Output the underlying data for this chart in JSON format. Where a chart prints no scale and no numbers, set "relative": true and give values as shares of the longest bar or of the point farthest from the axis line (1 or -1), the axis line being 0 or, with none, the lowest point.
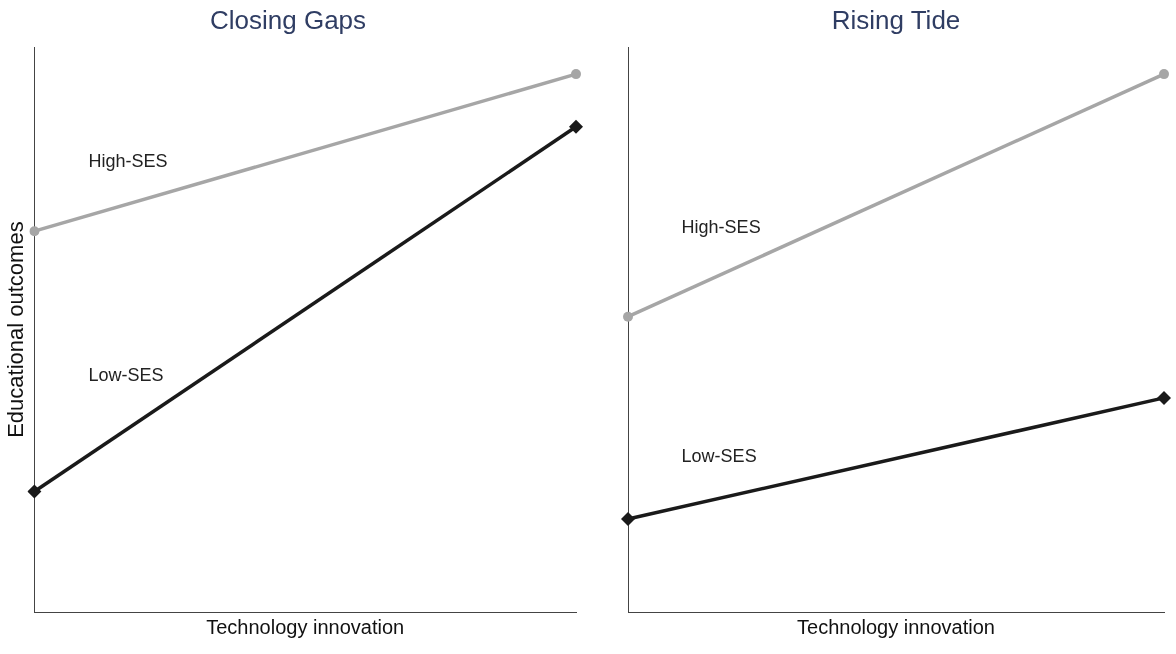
{
  "chart_data": [
    {
      "type": "line",
      "title": "Closing Gaps",
      "xlabel": "Technology innovation",
      "ylabel": "Educational outcomes",
      "categories": [
        null,
        null
      ],
      "relative": true,
      "tick_labels": false,
      "grid": false,
      "legend": false,
      "series": [
        {
          "name": "High-SES",
          "color": "#a6a6a6",
          "marker": "circle",
          "values": [
            0.708,
            1
          ]
        },
        {
          "name": "Low-SES",
          "color": "#1a1a1a",
          "marker": "diamond",
          "values": [
            0.224,
            0.902
          ]
        }
      ]
    },
    {
      "type": "line",
      "title": "Rising Tide",
      "xlabel": "Technology innovation",
      "categories": [
        null,
        null
      ],
      "relative": true,
      "tick_labels": false,
      "grid": false,
      "legend": false,
      "series": [
        {
          "name": "High-SES",
          "color": "#a6a6a6",
          "marker": "circle",
          "values": [
            0.549,
            1
          ]
        },
        {
          "name": "Low-SES",
          "color": "#1a1a1a",
          "marker": "diamond",
          "values": [
            0.173,
            0.398
          ]
        }
      ]
    }
  ]
}
